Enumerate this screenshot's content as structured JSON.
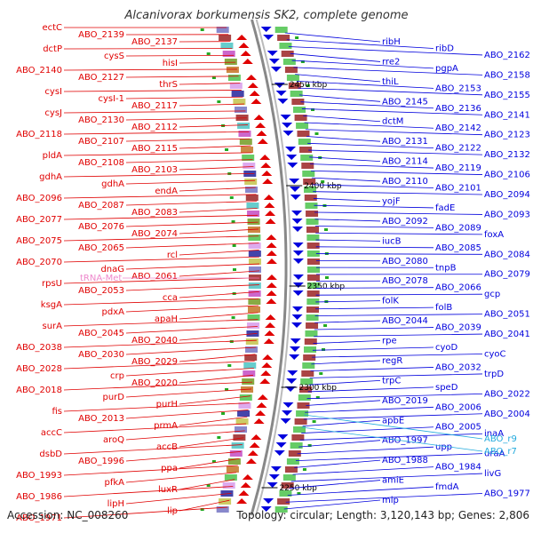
{
  "title": "Alcanivorax borkumensis SK2, complete genome",
  "accession": "Accession: NC_008260",
  "topology": "Topology: circular; Length: 3,120,143 bp; Genes: 2,806",
  "colors": {
    "left": "#e00000",
    "right": "#0000dd",
    "trna": "#ee88cc",
    "rna": "#22aadd",
    "kbp": "#000000",
    "backbone": "#888888"
  },
  "kbp_labels": [
    "2450 kbp",
    "2400 kbp",
    "2350 kbp",
    "2300 kbp",
    "2250 kbp"
  ],
  "left_labels": [
    "ectC",
    "ABO_2139",
    "ABO_2137",
    "dctP",
    "cysS",
    "hisI",
    "ABO_2140",
    "ABO_2127",
    "thrS",
    "cysI",
    "cysI-1",
    "ABO_2117",
    "cysJ",
    "ABO_2130",
    "ABO_2112",
    "ABO_2118",
    "ABO_2107",
    "ABO_2115",
    "pldA",
    "ABO_2108",
    "ABO_2103",
    "gdhA",
    "gdhA",
    "endA",
    "ABO_2096",
    "ABO_2087",
    "ABO_2083",
    "ABO_2077",
    "ABO_2076",
    "ABO_2074",
    "ABO_2075",
    "ABO_2065",
    "rcl",
    "ABO_2070",
    "dnaG",
    "ABO_2061",
    "rpsU",
    "ABO_2053",
    "cca",
    "ksgA",
    "pdxA",
    "apaH",
    "surA",
    "ABO_2045",
    "ABO_2040",
    "ABO_2038",
    "ABO_2030",
    "ABO_2029",
    "ABO_2028",
    "crp",
    "ABO_2020",
    "ABO_2018",
    "purD",
    "purH",
    "fis",
    "ABO_2013",
    "prmA",
    "accC",
    "aroQ",
    "accB",
    "dsbD",
    "ABO_1996",
    "ppa",
    "ABO_1993",
    "pfkA",
    "luxR",
    "ABO_1986",
    "lipH",
    "lip",
    "ABO_1971"
  ],
  "trna_label": "tRNA-Met",
  "right_labels": [
    "ribH",
    "ribD",
    "ABO_2162",
    "rre2",
    "pgpA",
    "ABO_2158",
    "thiL",
    "ABO_2153",
    "ABO_2155",
    "ABO_2145",
    "ABO_2136",
    "ABO_2141",
    "dctM",
    "ABO_2142",
    "ABO_2123",
    "ABO_2131",
    "ABO_2122",
    "ABO_2132",
    "ABO_2114",
    "ABO_2119",
    "ABO_2106",
    "ABO_2110",
    "ABO_2101",
    "ABO_2094",
    "yojF",
    "fadE",
    "ABO_2093",
    "ABO_2092",
    "ABO_2089",
    "foxA",
    "iucB",
    "ABO_2085",
    "ABO_2084",
    "ABO_2080",
    "tnpB",
    "ABO_2079",
    "ABO_2078",
    "ABO_2066",
    "gcp",
    "folK",
    "folB",
    "ABO_2051",
    "ABO_2044",
    "ABO_2039",
    "ABO_2041",
    "rpe",
    "cyoD",
    "cyoC",
    "regR",
    "ABO_2032",
    "trpD",
    "trpC",
    "speD",
    "ABO_2022",
    "ABO_2019",
    "ABO_2006",
    "ABO_2004",
    "apbE",
    "ABO_2005",
    "inaA",
    "ABO_1997",
    "upp",
    "uraA",
    "ABO_1988",
    "ABO_1984",
    "livG",
    "amiE",
    "fmdA",
    "ABO_1977",
    "mlp"
  ],
  "rna_labels": [
    "ABO_r9",
    "ABO_r7"
  ]
}
